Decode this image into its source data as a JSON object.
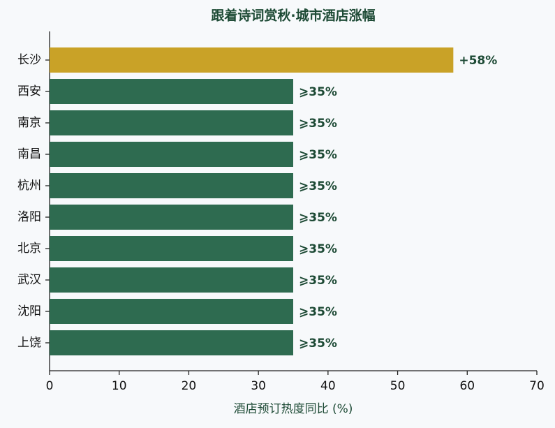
{
  "chart_data": {
    "type": "barh",
    "title": "跟着诗词赏秋·城市酒店涨幅",
    "xlabel": "酒店预订热度同比 (%)",
    "categories": [
      "长沙",
      "西安",
      "南京",
      "南昌",
      "杭州",
      "洛阳",
      "北京",
      "武汉",
      "沈阳",
      "上饶"
    ],
    "values": [
      58,
      35,
      35,
      35,
      35,
      35,
      35,
      35,
      35,
      35
    ],
    "value_labels": [
      "+58%",
      "⩾35%",
      "⩾35%",
      "⩾35%",
      "⩾35%",
      "⩾35%",
      "⩾35%",
      "⩾35%",
      "⩾35%",
      "⩾35%"
    ],
    "colors": [
      "#c9a227",
      "#2e6b50",
      "#2e6b50",
      "#2e6b50",
      "#2e6b50",
      "#2e6b50",
      "#2e6b50",
      "#2e6b50",
      "#2e6b50",
      "#2e6b50"
    ],
    "xlim": [
      0,
      70
    ],
    "xticks": [
      0,
      10,
      20,
      30,
      40,
      50,
      60,
      70
    ]
  }
}
